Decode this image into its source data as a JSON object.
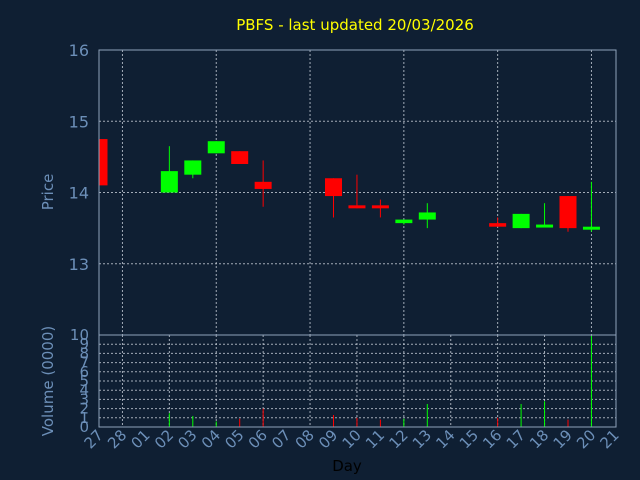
{
  "chart_data": {
    "type": "candlestick",
    "title": "PBFS - last updated 20/03/2026",
    "xlabel": "Day",
    "price_panel": {
      "ylabel": "Price",
      "ylim": [
        12,
        16
      ],
      "yticks": [
        "16",
        "15",
        "14",
        "13"
      ]
    },
    "volume_panel": {
      "ylabel": "Volume (0000)",
      "ylim": [
        0,
        10
      ],
      "yticks": [
        "10",
        "9",
        "8",
        "7",
        "6",
        "5",
        "4",
        "3",
        "2",
        "1",
        "0"
      ]
    },
    "grid": true,
    "x_ticks": [
      "27",
      "28",
      "01",
      "02",
      "03",
      "04",
      "05",
      "06",
      "07",
      "08",
      "09",
      "10",
      "11",
      "12",
      "13",
      "14",
      "15",
      "16",
      "17",
      "18",
      "19",
      "20",
      "21"
    ],
    "colors": {
      "up": "#00ff00",
      "down": "#ff0000",
      "title": "#ffff00",
      "axis": "#6c8fb8",
      "background": "#0f1f33"
    },
    "candles": [
      {
        "day": "27",
        "open": 14.75,
        "high": 14.75,
        "low": 14.1,
        "close": 14.1,
        "volume": 0.0
      },
      {
        "day": "02",
        "open": 14.0,
        "high": 14.65,
        "low": 14.0,
        "close": 14.3,
        "volume": 1.5
      },
      {
        "day": "03",
        "open": 14.25,
        "high": 14.45,
        "low": 14.2,
        "close": 14.45,
        "volume": 1.2
      },
      {
        "day": "04",
        "open": 14.55,
        "high": 14.72,
        "low": 14.55,
        "close": 14.72,
        "volume": 0.6
      },
      {
        "day": "05",
        "open": 14.58,
        "high": 14.58,
        "low": 14.4,
        "close": 14.4,
        "volume": 0.9
      },
      {
        "day": "06",
        "open": 14.15,
        "high": 14.45,
        "low": 13.8,
        "close": 14.05,
        "volume": 2.0
      },
      {
        "day": "09",
        "open": 14.2,
        "high": 14.2,
        "low": 13.65,
        "close": 13.95,
        "volume": 1.3
      },
      {
        "day": "10",
        "open": 13.82,
        "high": 14.25,
        "low": 13.78,
        "close": 13.78,
        "volume": 1.0
      },
      {
        "day": "11",
        "open": 13.82,
        "high": 13.9,
        "low": 13.65,
        "close": 13.78,
        "volume": 0.8
      },
      {
        "day": "12",
        "open": 13.57,
        "high": 13.62,
        "low": 13.55,
        "close": 13.62,
        "volume": 0.9
      },
      {
        "day": "13",
        "open": 13.62,
        "high": 13.85,
        "low": 13.5,
        "close": 13.72,
        "volume": 2.5
      },
      {
        "day": "16",
        "open": 13.57,
        "high": 13.65,
        "low": 13.52,
        "close": 13.52,
        "volume": 1.0
      },
      {
        "day": "17",
        "open": 13.5,
        "high": 13.7,
        "low": 13.5,
        "close": 13.7,
        "volume": 2.5
      },
      {
        "day": "18",
        "open": 13.52,
        "high": 13.85,
        "low": 13.52,
        "close": 13.55,
        "volume": 2.8
      },
      {
        "day": "19",
        "open": 13.95,
        "high": 13.95,
        "low": 13.45,
        "close": 13.5,
        "volume": 0.8
      },
      {
        "day": "20",
        "open": 13.48,
        "high": 14.15,
        "low": 13.45,
        "close": 13.52,
        "volume": 9.9
      }
    ]
  }
}
